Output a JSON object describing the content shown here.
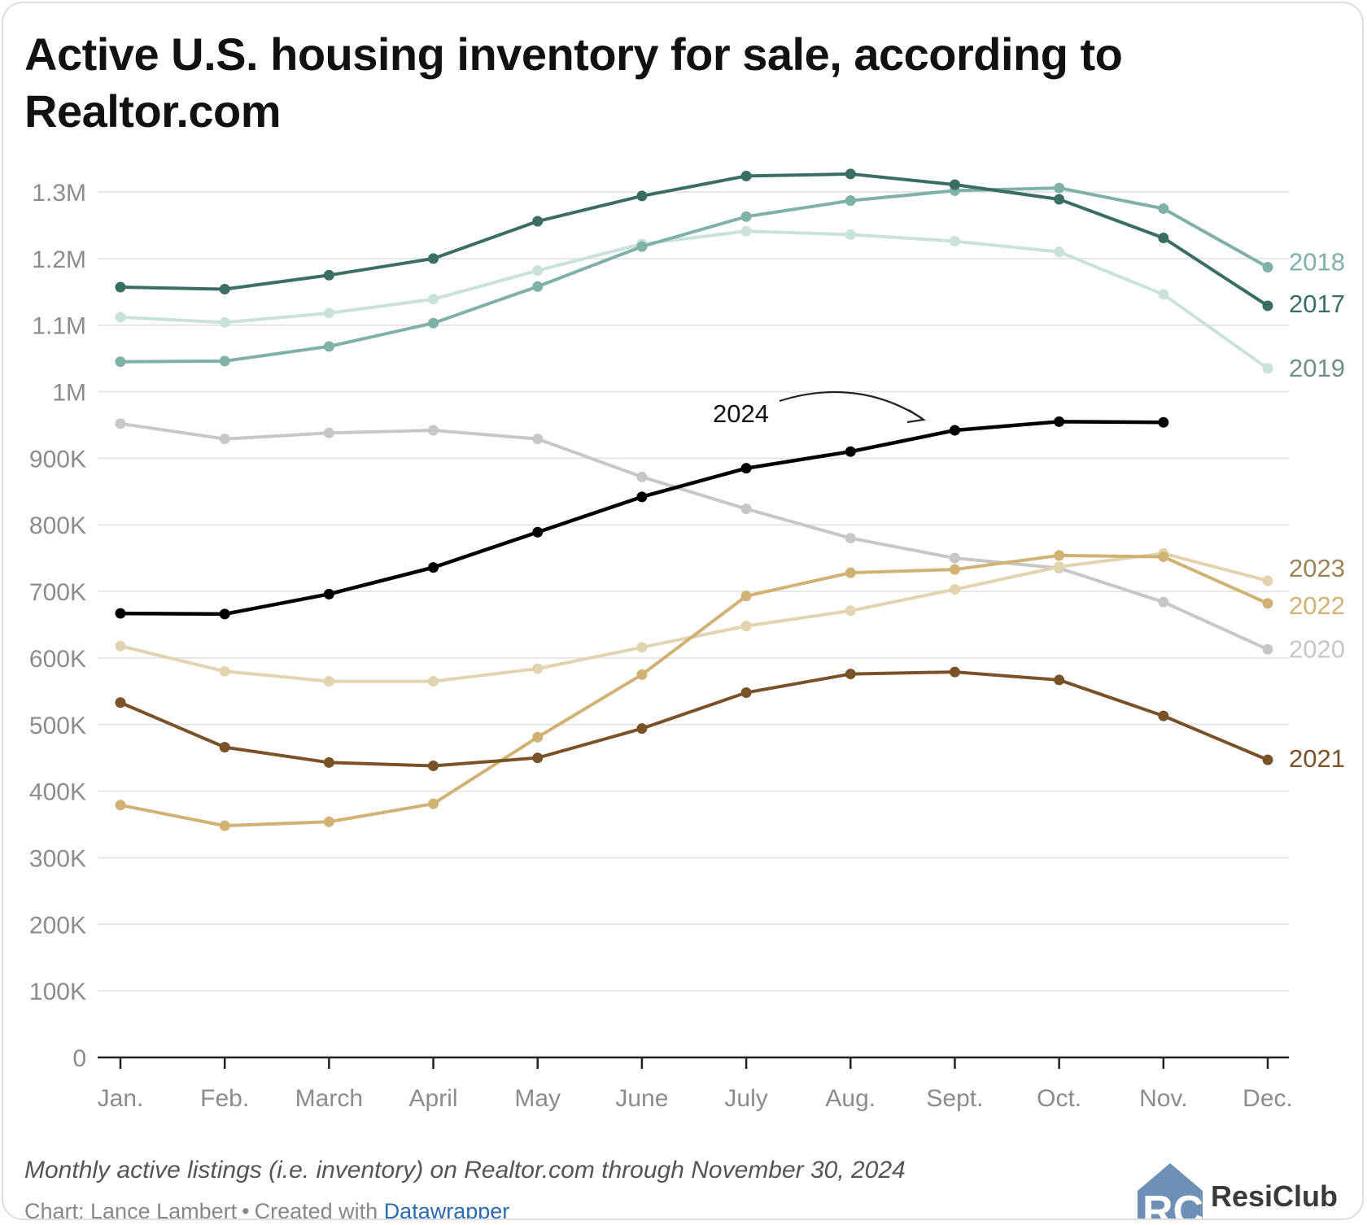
{
  "title": "Active U.S. housing inventory for sale, according to Realtor.com",
  "caption": "Monthly active listings (i.e. inventory) on Realtor.com through November 30, 2024",
  "credit": {
    "prefix": "Chart: Lance Lambert",
    "separator": "•",
    "created_with": "Created with",
    "link_text": "Datawrapper"
  },
  "logo": {
    "text": "ResiClub",
    "mark": "RC"
  },
  "colors": {
    "2017": "#3b6e63",
    "2018": "#7fb1a6",
    "2019": "#c9e3dc",
    "2020": "#c7c7c7",
    "2021": "#7a5228",
    "2022": "#d1b272",
    "2023": "#e3d4b0",
    "2024": "#000000",
    "grid": "#e6e6e6",
    "axis": "#222222",
    "tick_label": "#8c8c8c",
    "datawrapper_link": "#2b6cb0"
  },
  "chart_data": {
    "type": "line",
    "categories": [
      "Jan.",
      "Feb.",
      "March",
      "April",
      "May",
      "June",
      "July",
      "Aug.",
      "Sept.",
      "Oct.",
      "Nov.",
      "Dec."
    ],
    "ylim": [
      0,
      1300000
    ],
    "yticks": [
      0,
      100000,
      200000,
      300000,
      400000,
      500000,
      600000,
      700000,
      800000,
      900000,
      1000000,
      1100000,
      1200000,
      1300000
    ],
    "ytick_labels": [
      "0",
      "100K",
      "200K",
      "300K",
      "400K",
      "500K",
      "600K",
      "700K",
      "800K",
      "900K",
      "1M",
      "1.1M",
      "1.2M",
      "1.3M"
    ],
    "grid": true,
    "legend": "direct labels at line ends",
    "series": [
      {
        "name": "2020",
        "values": [
          952000,
          929000,
          938000,
          942000,
          929000,
          872000,
          824000,
          780000,
          750000,
          735000,
          684000,
          613000
        ]
      },
      {
        "name": "2019",
        "values": [
          1112000,
          1104000,
          1118000,
          1139000,
          1182000,
          1222000,
          1241000,
          1236000,
          1226000,
          1210000,
          1146000,
          1035000
        ]
      },
      {
        "name": "2018",
        "values": [
          1045000,
          1046000,
          1068000,
          1103000,
          1158000,
          1218000,
          1263000,
          1287000,
          1302000,
          1306000,
          1275000,
          1187000
        ]
      },
      {
        "name": "2017",
        "values": [
          1157000,
          1154000,
          1175000,
          1200000,
          1256000,
          1294000,
          1324000,
          1327000,
          1311000,
          1289000,
          1231000,
          1129000
        ]
      },
      {
        "name": "2023",
        "values": [
          618000,
          580000,
          565000,
          565000,
          584000,
          616000,
          648000,
          671000,
          703000,
          737000,
          757000,
          716000
        ]
      },
      {
        "name": "2022",
        "values": [
          379000,
          348000,
          354000,
          381000,
          481000,
          575000,
          693000,
          728000,
          733000,
          754000,
          752000,
          682000
        ]
      },
      {
        "name": "2021",
        "values": [
          533000,
          466000,
          443000,
          438000,
          450000,
          494000,
          548000,
          576000,
          579000,
          567000,
          513000,
          447000
        ]
      },
      {
        "name": "2024",
        "values": [
          667000,
          666000,
          696000,
          736000,
          789000,
          842000,
          885000,
          910000,
          942000,
          955000,
          954000,
          null
        ]
      }
    ],
    "annotation": {
      "text": "2024"
    }
  }
}
